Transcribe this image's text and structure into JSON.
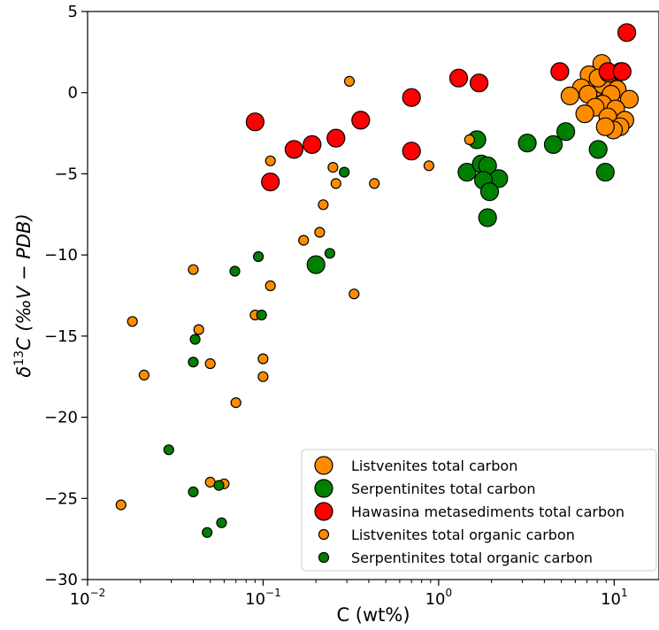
{
  "chart_data": {
    "type": "scatter",
    "xlabel_main": "C (wt%)",
    "ylabel_parts": [
      "δ",
      "13",
      "C (‰V − PDB)"
    ],
    "xscale": "log",
    "xlim": [
      0.01,
      18
    ],
    "ylim": [
      -30,
      5
    ],
    "x_ticks": [
      {
        "value": 0.01,
        "base": "10",
        "exp": "−2"
      },
      {
        "value": 0.1,
        "base": "10",
        "exp": "−1"
      },
      {
        "value": 1,
        "base": "10",
        "exp": "0"
      },
      {
        "value": 10,
        "base": "10",
        "exp": "1"
      }
    ],
    "y_ticks": [
      {
        "value": 5,
        "label": "5"
      },
      {
        "value": 0,
        "label": "0"
      },
      {
        "value": -5,
        "label": "−5"
      },
      {
        "value": -10,
        "label": "−10"
      },
      {
        "value": -15,
        "label": "−15"
      },
      {
        "value": -20,
        "label": "−20"
      },
      {
        "value": -25,
        "label": "−25"
      },
      {
        "value": -30,
        "label": "−30"
      }
    ],
    "grid": false,
    "legend_position": "bottom-right",
    "series": [
      {
        "name": "Listvenites total carbon",
        "color": "#ff8c00",
        "size": "large",
        "points": [
          [
            8.5,
            1.8
          ],
          [
            7.2,
            1.1
          ],
          [
            9.8,
            0.8
          ],
          [
            7.8,
            0.3
          ],
          [
            8.6,
            0.5
          ],
          [
            10.4,
            0.2
          ],
          [
            6.5,
            0.3
          ],
          [
            5.6,
            -0.2
          ],
          [
            7.1,
            -0.1
          ],
          [
            9.6,
            -0.1
          ],
          [
            12.2,
            -0.4
          ],
          [
            8.6,
            -0.7
          ],
          [
            7.8,
            -0.9
          ],
          [
            10.2,
            -1.0
          ],
          [
            6.8,
            -1.3
          ],
          [
            9.2,
            -1.5
          ],
          [
            11.5,
            -1.7
          ],
          [
            10.8,
            -2.1
          ],
          [
            9.9,
            -2.3
          ],
          [
            8.9,
            -2.1
          ],
          [
            8.1,
            0.9
          ],
          [
            9.3,
            1.2
          ]
        ]
      },
      {
        "name": "Serpentinites total carbon",
        "color": "#008000",
        "size": "large",
        "points": [
          [
            1.65,
            -2.9
          ],
          [
            3.2,
            -3.1
          ],
          [
            4.5,
            -3.2
          ],
          [
            5.3,
            -2.4
          ],
          [
            8.1,
            -3.5
          ],
          [
            8.9,
            -4.9
          ],
          [
            1.45,
            -4.9
          ],
          [
            1.75,
            -4.4
          ],
          [
            1.9,
            -4.5
          ],
          [
            2.2,
            -5.3
          ],
          [
            1.8,
            -5.4
          ],
          [
            1.95,
            -6.1
          ],
          [
            1.9,
            -7.7
          ],
          [
            0.2,
            -10.6
          ]
        ]
      },
      {
        "name": "Hawasina metasediments total carbon",
        "color": "#ff0000",
        "size": "large",
        "points": [
          [
            11.8,
            3.7
          ],
          [
            10.9,
            1.3
          ],
          [
            4.9,
            1.3
          ],
          [
            9.2,
            1.3
          ],
          [
            1.3,
            0.9
          ],
          [
            1.7,
            0.6
          ],
          [
            0.7,
            -0.3
          ],
          [
            0.09,
            -1.8
          ],
          [
            0.36,
            -1.7
          ],
          [
            0.26,
            -2.8
          ],
          [
            0.19,
            -3.2
          ],
          [
            0.15,
            -3.5
          ],
          [
            0.7,
            -3.6
          ],
          [
            0.11,
            -5.5
          ],
          [
            11.1,
            1.3
          ]
        ]
      },
      {
        "name": "Listvenites total organic carbon",
        "color": "#ff8c00",
        "size": "small",
        "points": [
          [
            0.31,
            0.7
          ],
          [
            1.5,
            -2.9
          ],
          [
            0.11,
            -4.2
          ],
          [
            0.25,
            -4.6
          ],
          [
            0.88,
            -4.5
          ],
          [
            0.26,
            -5.6
          ],
          [
            0.43,
            -5.6
          ],
          [
            0.22,
            -6.9
          ],
          [
            0.21,
            -8.6
          ],
          [
            0.17,
            -9.1
          ],
          [
            0.04,
            -10.9
          ],
          [
            0.11,
            -11.9
          ],
          [
            0.33,
            -12.4
          ],
          [
            0.09,
            -13.7
          ],
          [
            0.018,
            -14.1
          ],
          [
            0.043,
            -14.6
          ],
          [
            0.1,
            -16.4
          ],
          [
            0.05,
            -16.7
          ],
          [
            0.021,
            -17.4
          ],
          [
            0.1,
            -17.5
          ],
          [
            0.07,
            -19.1
          ],
          [
            0.05,
            -24.0
          ],
          [
            0.06,
            -24.1
          ],
          [
            0.0155,
            -25.4
          ]
        ]
      },
      {
        "name": "Serpentinites total organic carbon",
        "color": "#008000",
        "size": "small",
        "points": [
          [
            0.29,
            -4.9
          ],
          [
            0.24,
            -9.9
          ],
          [
            0.094,
            -10.1
          ],
          [
            0.069,
            -11.0
          ],
          [
            0.098,
            -13.7
          ],
          [
            0.041,
            -15.2
          ],
          [
            0.04,
            -16.6
          ],
          [
            0.029,
            -22.0
          ],
          [
            0.04,
            -24.6
          ],
          [
            0.056,
            -24.2
          ],
          [
            0.058,
            -26.5
          ],
          [
            0.048,
            -27.1
          ]
        ]
      }
    ]
  }
}
